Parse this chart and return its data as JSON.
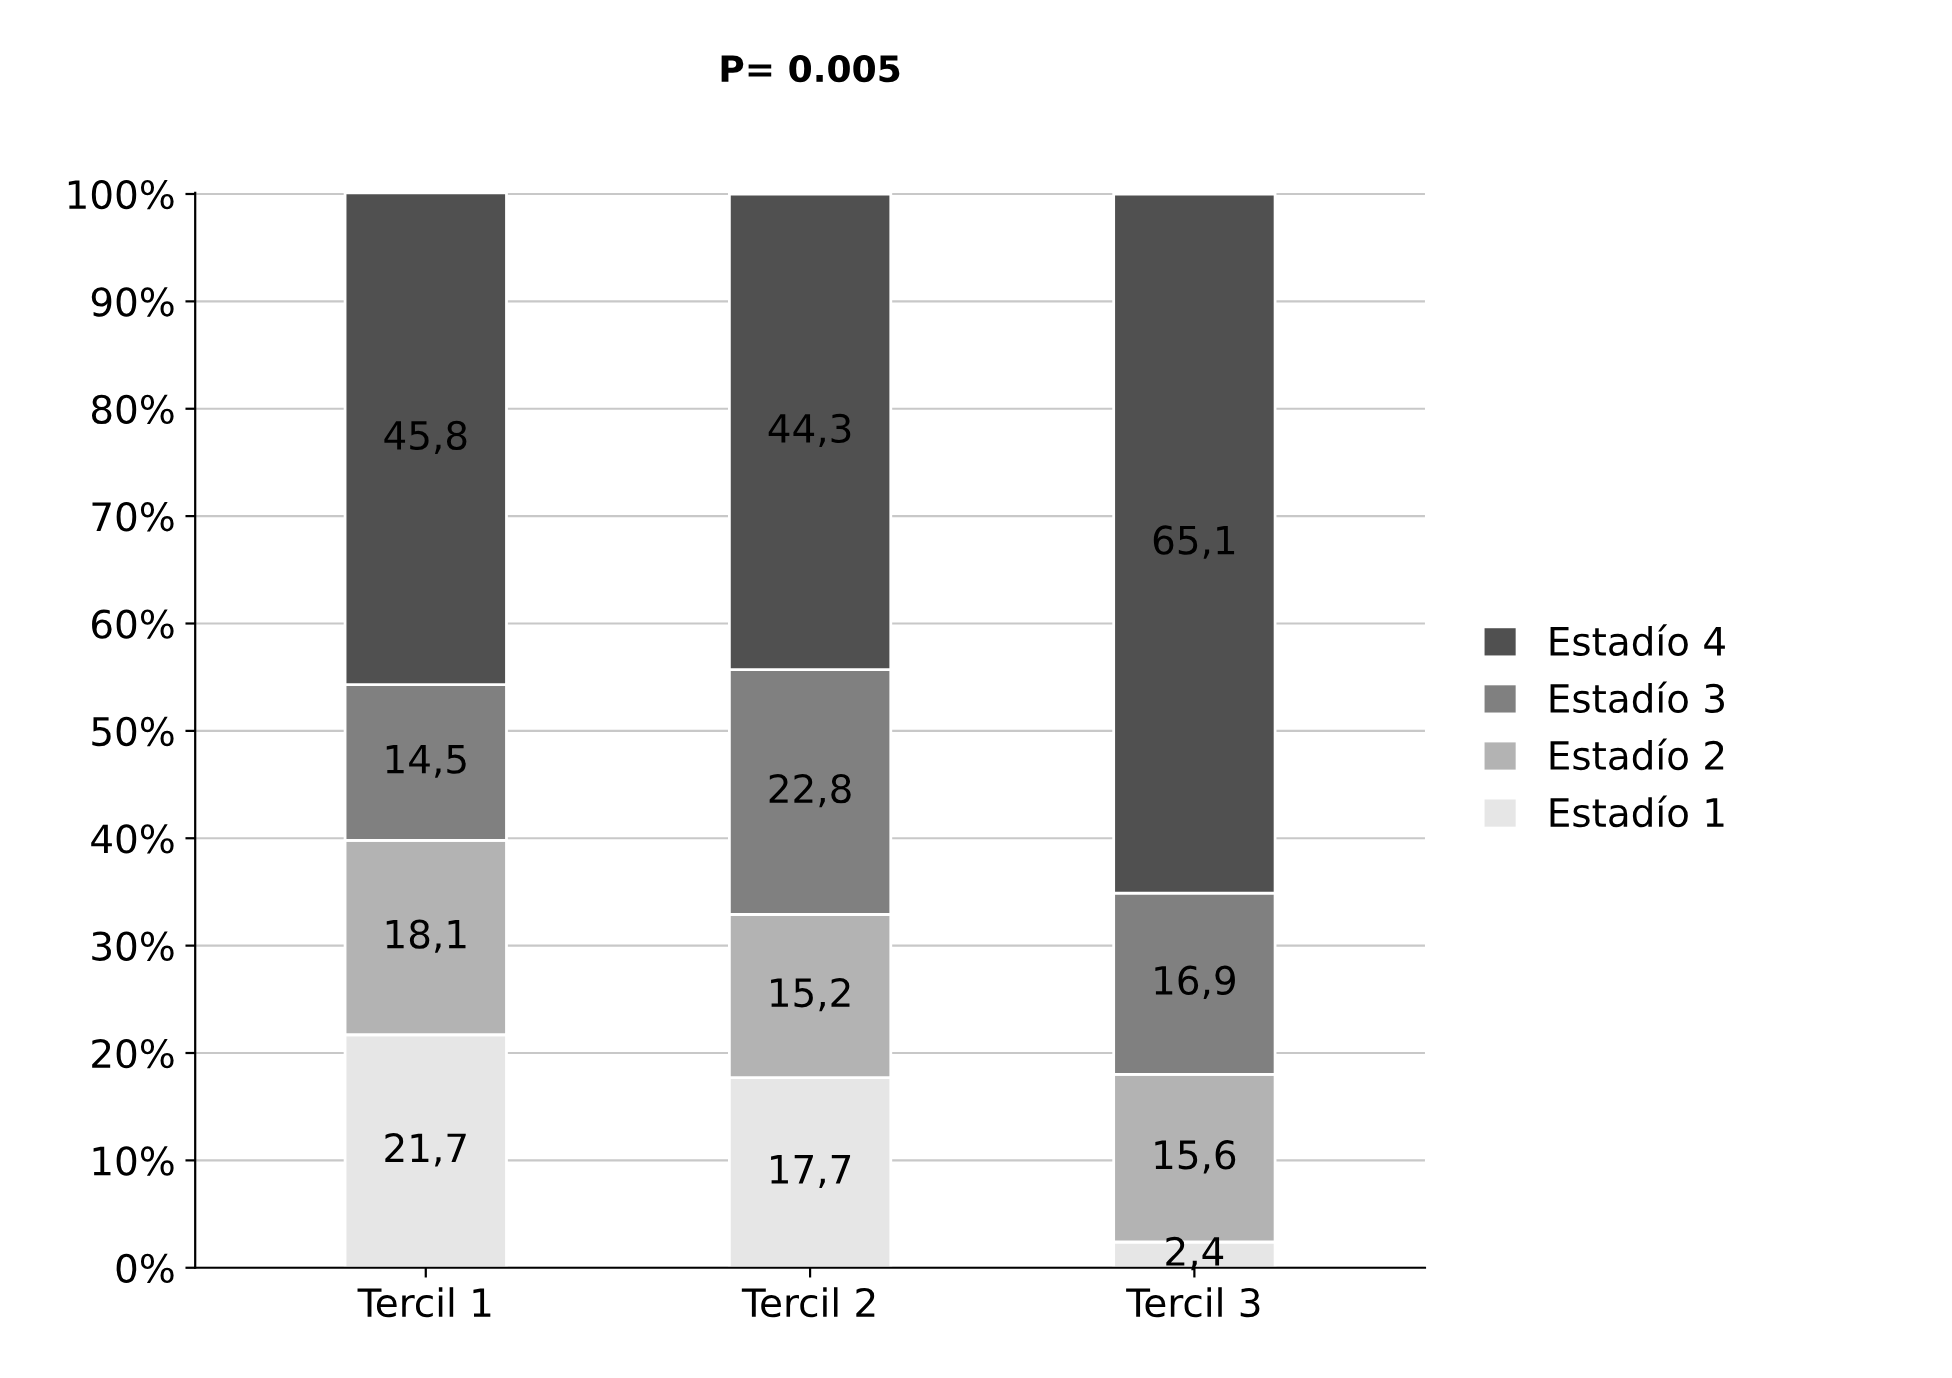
{
  "chart_data": {
    "type": "bar",
    "title": "P= 0.005",
    "stacked": true,
    "categories": [
      "Tercil 1",
      "Tercil 2",
      "Tercil 3"
    ],
    "series": [
      {
        "name": "Estadío 1",
        "color": "#e6e6e6",
        "values": [
          21.7,
          17.7,
          2.4
        ],
        "value_labels": [
          "21,7",
          "17,7",
          "2,4"
        ]
      },
      {
        "name": "Estadío 2",
        "color": "#b3b3b3",
        "values": [
          18.1,
          15.2,
          15.6
        ],
        "value_labels": [
          "18,1",
          "15,2",
          "15,6"
        ]
      },
      {
        "name": "Estadío 3",
        "color": "#808080",
        "values": [
          14.5,
          22.8,
          16.9
        ],
        "value_labels": [
          "14,5",
          "22,8",
          "16,9"
        ]
      },
      {
        "name": "Estadío 4",
        "color": "#505050",
        "values": [
          45.8,
          44.3,
          65.1
        ],
        "value_labels": [
          "45,8",
          "44,3",
          "65,1"
        ]
      }
    ],
    "ylim": [
      0,
      100.1
    ],
    "yticks": [
      {
        "value": 0,
        "label": "0%"
      },
      {
        "value": 10,
        "label": "10%"
      },
      {
        "value": 20,
        "label": "20%"
      },
      {
        "value": 30,
        "label": "30%"
      },
      {
        "value": 40,
        "label": "40%"
      },
      {
        "value": 50,
        "label": "50%"
      },
      {
        "value": 60,
        "label": "60%"
      },
      {
        "value": 70,
        "label": "70%"
      },
      {
        "value": 80,
        "label": "80%"
      },
      {
        "value": 90,
        "label": "90%"
      },
      {
        "value": 100,
        "label": "100%"
      }
    ],
    "grid": "y",
    "legend": "right"
  }
}
